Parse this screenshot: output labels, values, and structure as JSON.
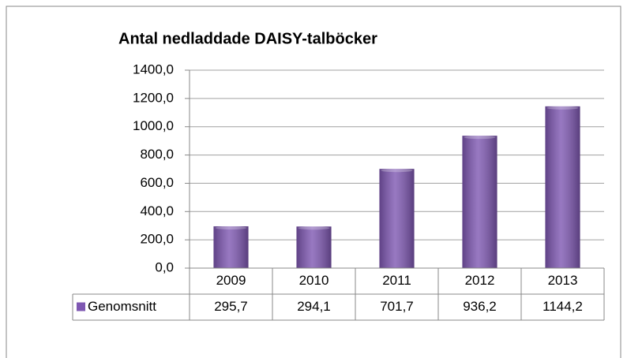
{
  "chart_data": {
    "type": "bar",
    "title": "Antal nedladdade DAISY-talböcker",
    "categories": [
      "2009",
      "2010",
      "2011",
      "2012",
      "2013"
    ],
    "series": [
      {
        "name": "Genomsnitt",
        "color": "#7e57b2",
        "values": [
          295.7,
          294.1,
          701.7,
          936.2,
          1144.2
        ],
        "value_labels": [
          "295,7",
          "294,1",
          "701,7",
          "936,2",
          "1144,2"
        ]
      }
    ],
    "ylim": [
      0,
      1400
    ],
    "yticks": [
      {
        "value": 0,
        "label": "0,0"
      },
      {
        "value": 200,
        "label": "200,0"
      },
      {
        "value": 400,
        "label": "400,0"
      },
      {
        "value": 600,
        "label": "600,0"
      },
      {
        "value": 800,
        "label": "800,0"
      },
      {
        "value": 1000,
        "label": "1000,0"
      },
      {
        "value": 1200,
        "label": "1200,0"
      },
      {
        "value": 1400,
        "label": "1400,0"
      }
    ],
    "grid": true,
    "data_table": true
  }
}
